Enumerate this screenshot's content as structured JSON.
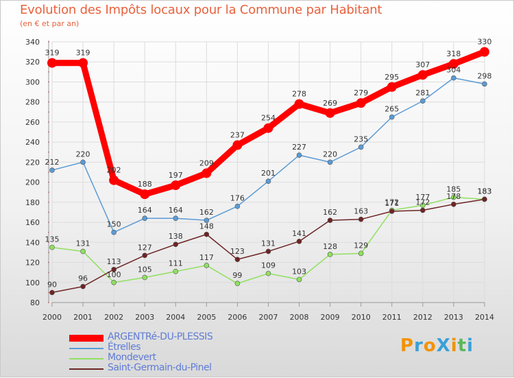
{
  "title": "Evolution des Impôts locaux pour la Commune par Habitant",
  "subtitle": "(en € et par an)",
  "logo": {
    "text": "ProXiti",
    "letters": [
      "P",
      "r",
      "o",
      "X",
      "i",
      "t",
      "i"
    ],
    "colors": [
      "#f39200",
      "#3aa0d8",
      "#f39200",
      "#3aa0d8",
      "#f39200",
      "#5cb85c",
      "#3aa0d8"
    ]
  },
  "chart_data": {
    "type": "line",
    "title": "Evolution des Impôts locaux pour la Commune par Habitant",
    "subtitle": "(en € et par an)",
    "xlabel": "",
    "ylabel": "",
    "categories": [
      "2000",
      "2001",
      "2002",
      "2003",
      "2004",
      "2005",
      "2006",
      "2007",
      "2008",
      "2009",
      "2010",
      "2011",
      "2012",
      "2013",
      "2014"
    ],
    "yticks": [
      "80",
      "100",
      "120",
      "140",
      "160",
      "180",
      "200",
      "220",
      "240",
      "260",
      "280",
      "300",
      "320",
      "340"
    ],
    "ylim": [
      80,
      340
    ],
    "grid": true,
    "legend_position": "bottom-left",
    "series": [
      {
        "name": "ARGENTRé-DU-PLESSIS",
        "color": "#ff0000",
        "emphasis": true,
        "values": [
          319,
          319,
          202,
          188,
          197,
          209,
          237,
          254,
          278,
          269,
          279,
          295,
          307,
          318,
          330
        ]
      },
      {
        "name": "Étrelles",
        "color": "#5b9bd5",
        "emphasis": false,
        "values": [
          212,
          220,
          150,
          164,
          164,
          162,
          176,
          201,
          227,
          220,
          235,
          265,
          281,
          304,
          298
        ]
      },
      {
        "name": "Mondevert",
        "color": "#90e060",
        "emphasis": false,
        "values": [
          135,
          131,
          100,
          105,
          111,
          117,
          99,
          109,
          103,
          128,
          129,
          172,
          177,
          185,
          183
        ]
      },
      {
        "name": "Saint-Germain-du-Pinel",
        "color": "#6e2424",
        "emphasis": false,
        "values": [
          90,
          96,
          113,
          127,
          138,
          148,
          123,
          131,
          141,
          162,
          163,
          171,
          172,
          178,
          183
        ]
      }
    ]
  }
}
